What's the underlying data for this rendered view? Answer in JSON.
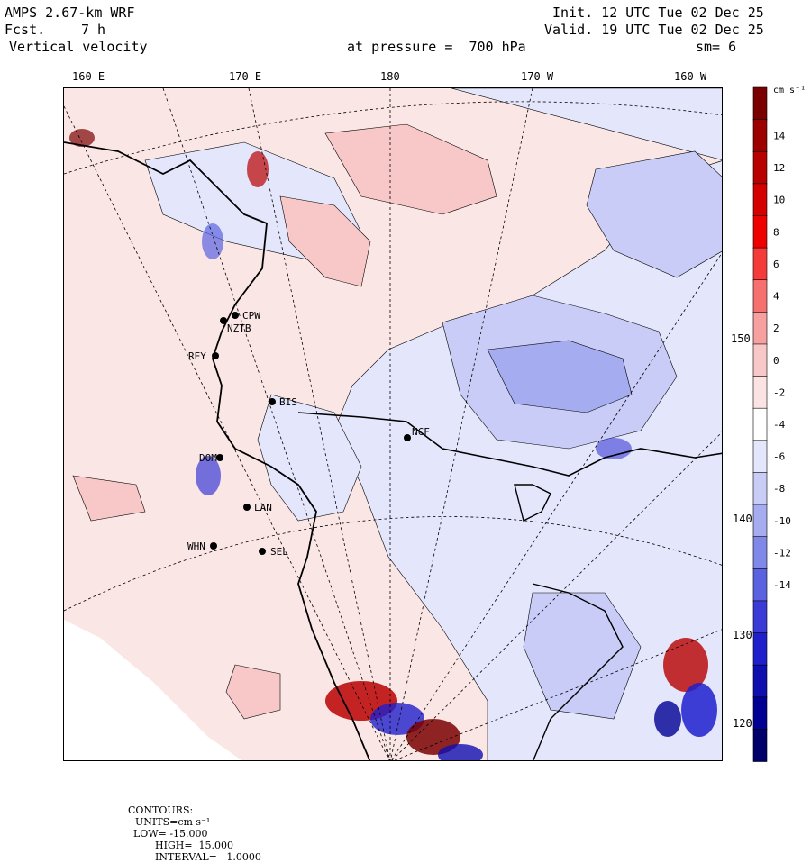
{
  "header": {
    "model": "AMPS 2.67-km WRF",
    "fcst_label": "Fcst.",
    "fcst_value": "7 h",
    "field": "Vertical velocity",
    "init": "Init. 12 UTC Tue 02 Dec 25",
    "valid": "Valid. 19 UTC Tue 02 Dec 25",
    "level": "at pressure =  700 hPa",
    "smooth": "sm= 6"
  },
  "top_ticks": [
    "160 E",
    "170 E",
    "180",
    "170 W",
    "160 W"
  ],
  "right_ticks": [
    "150 W",
    "140 W",
    "130 W",
    "120 W"
  ],
  "stations": [
    {
      "id": "CPW"
    },
    {
      "id": "NZTB"
    },
    {
      "id": "REY"
    },
    {
      "id": "BIS"
    },
    {
      "id": "NCF"
    },
    {
      "id": "DOM"
    },
    {
      "id": "LAN"
    },
    {
      "id": "WHN"
    },
    {
      "id": "SEL"
    }
  ],
  "colorbar": {
    "unit_label": "cm s⁻¹",
    "ticks": [
      "14",
      "12",
      "10",
      "8",
      "6",
      "4",
      "2",
      "0",
      "-2",
      "-4",
      "-6",
      "-8",
      "-10",
      "-12",
      "-14"
    ],
    "colors": [
      "#7a0000",
      "#9c0000",
      "#b80000",
      "#d40000",
      "#ee0000",
      "#f53a3a",
      "#f77070",
      "#f7a0a0",
      "#f8c8c8",
      "#fbe3e3",
      "#ffffff",
      "#e4e6fb",
      "#c8ccf6",
      "#a5acf0",
      "#8088e8",
      "#5a62e0",
      "#3a3ad6",
      "#1f1fcc",
      "#0f0fb0",
      "#000093",
      "#00006a"
    ]
  },
  "footer": {
    "contours_label": "CONTOURS:",
    "units": "UNITS=cm s⁻¹",
    "low": "LOW= -15.000",
    "high": "HIGH=  15.000",
    "interval": "INTERVAL=   1.0000"
  }
}
